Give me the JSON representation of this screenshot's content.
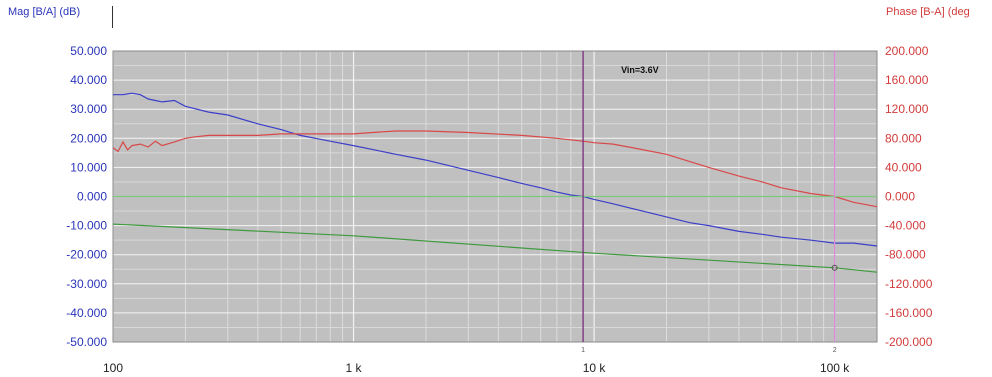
{
  "chart_data": {
    "type": "line",
    "y_left_label": "Mag [B/A] (dB)",
    "y_right_label": "Phase [B-A] (deg",
    "x_scale": "log",
    "xlim": [
      100,
      150000
    ],
    "ylim_left": [
      -50,
      50
    ],
    "ylim_right": [
      -200,
      200
    ],
    "x_ticks": [
      {
        "value": 100,
        "label": "100"
      },
      {
        "value": 1000,
        "label": "1 k"
      },
      {
        "value": 10000,
        "label": "10 k"
      },
      {
        "value": 100000,
        "label": "100 k"
      }
    ],
    "y_left_ticks": [
      "50.000",
      "40.000",
      "30.000",
      "20.000",
      "10.000",
      "0.000",
      "-10.000",
      "-20.000",
      "-30.000",
      "-40.000",
      "-50.000"
    ],
    "y_right_ticks": [
      "200.000",
      "160.000",
      "120.000",
      "80.000",
      "40.000",
      "0.000",
      "-40.000",
      "-80.000",
      "-120.000",
      "-160.000",
      "-200.000"
    ],
    "grid": true,
    "background": "#c0c0c0",
    "annotation": "Vin=3.6V",
    "cursors": [
      {
        "label": "1",
        "x": 9000,
        "color": "#7a2a7a"
      },
      {
        "label": "2",
        "x": 100000,
        "color": "#d98ad9"
      }
    ],
    "series": [
      {
        "axis": "left",
        "color": "#3b3fc8",
        "points": [
          [
            100,
            35
          ],
          [
            110,
            35
          ],
          [
            120,
            35.5
          ],
          [
            130,
            35
          ],
          [
            140,
            33.5
          ],
          [
            150,
            33
          ],
          [
            160,
            32.5
          ],
          [
            180,
            33
          ],
          [
            200,
            31
          ],
          [
            250,
            29
          ],
          [
            300,
            28
          ],
          [
            400,
            25
          ],
          [
            500,
            23
          ],
          [
            600,
            21
          ],
          [
            800,
            19
          ],
          [
            1000,
            17.5
          ],
          [
            1500,
            14.5
          ],
          [
            2000,
            12.5
          ],
          [
            3000,
            9
          ],
          [
            4000,
            6.5
          ],
          [
            5000,
            4.5
          ],
          [
            6000,
            3
          ],
          [
            7000,
            1.5
          ],
          [
            8000,
            0.5
          ],
          [
            9000,
            0
          ],
          [
            10000,
            -1
          ],
          [
            12000,
            -2.5
          ],
          [
            15000,
            -4.5
          ],
          [
            20000,
            -7
          ],
          [
            25000,
            -9
          ],
          [
            30000,
            -10
          ],
          [
            40000,
            -12
          ],
          [
            50000,
            -13
          ],
          [
            60000,
            -14
          ],
          [
            80000,
            -15
          ],
          [
            100000,
            -16
          ],
          [
            120000,
            -16
          ],
          [
            150000,
            -17
          ]
        ]
      },
      {
        "axis": "right",
        "color": "#d94848",
        "points": [
          [
            100,
            67
          ],
          [
            105,
            62
          ],
          [
            110,
            75
          ],
          [
            115,
            64
          ],
          [
            120,
            70
          ],
          [
            130,
            72
          ],
          [
            140,
            68
          ],
          [
            150,
            76
          ],
          [
            160,
            70
          ],
          [
            180,
            75
          ],
          [
            200,
            80
          ],
          [
            220,
            82
          ],
          [
            250,
            84
          ],
          [
            300,
            84
          ],
          [
            400,
            84
          ],
          [
            500,
            86
          ],
          [
            700,
            86
          ],
          [
            1000,
            86
          ],
          [
            1200,
            88
          ],
          [
            1500,
            90
          ],
          [
            2000,
            90
          ],
          [
            3000,
            88
          ],
          [
            5000,
            84
          ],
          [
            7000,
            80
          ],
          [
            9000,
            76
          ],
          [
            10000,
            74
          ],
          [
            12000,
            72
          ],
          [
            15000,
            66
          ],
          [
            20000,
            58
          ],
          [
            25000,
            48
          ],
          [
            30000,
            40
          ],
          [
            40000,
            28
          ],
          [
            50000,
            20
          ],
          [
            60000,
            12
          ],
          [
            80000,
            4
          ],
          [
            100000,
            0
          ],
          [
            120000,
            -8
          ],
          [
            150000,
            -14
          ]
        ]
      },
      {
        "axis": "left",
        "color": "#3e9a3e",
        "points": [
          [
            100,
            -9.5
          ],
          [
            1000,
            -13.5
          ],
          [
            10000,
            -19.5
          ],
          [
            100000,
            -24.5
          ],
          [
            150000,
            -26
          ]
        ]
      },
      {
        "axis": "left",
        "color": "#7fc87f",
        "points": [
          [
            100,
            0
          ],
          [
            150000,
            0
          ]
        ]
      }
    ]
  }
}
